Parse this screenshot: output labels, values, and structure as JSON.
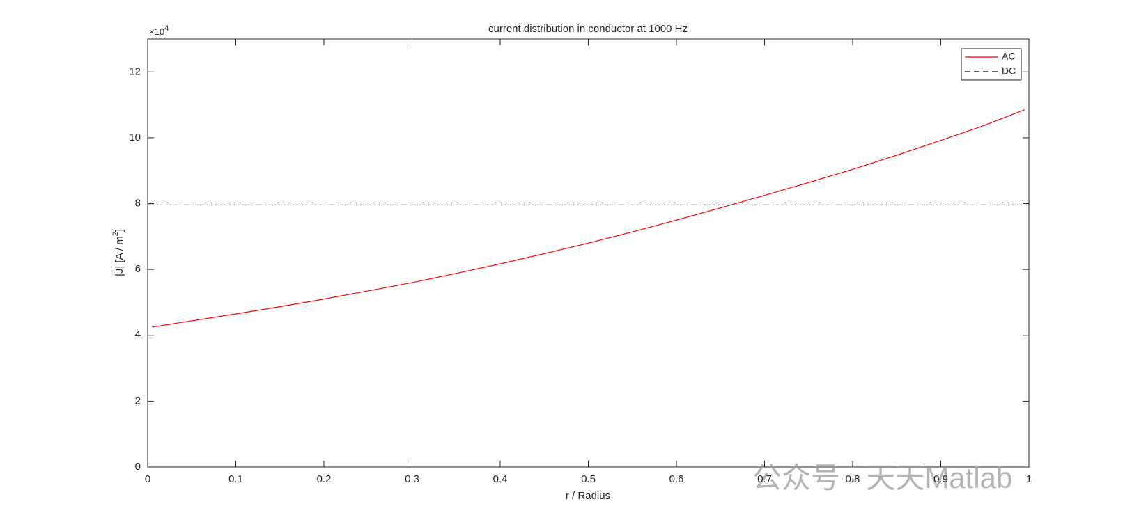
{
  "chart_data": {
    "type": "line",
    "title": "current distribution in conductor at 1000 Hz",
    "xlabel": "r / Radius",
    "ylabel": {
      "text": "|J|  [A / m",
      "sup": "2",
      "close": "]"
    },
    "y_exponent": {
      "base": "×10",
      "power": "4"
    },
    "xlim": [
      0,
      1
    ],
    "xticks": [
      0,
      0.1,
      0.2,
      0.3,
      0.4,
      0.5,
      0.6,
      0.7,
      0.8,
      0.9,
      1
    ],
    "ylim": [
      0,
      13
    ],
    "yticks": [
      0,
      2,
      4,
      6,
      8,
      10,
      12
    ],
    "legend": "northeast",
    "series": [
      {
        "name": "AC",
        "color": "#ff0000",
        "dash": false,
        "x": [
          0.005,
          0.05,
          0.1,
          0.15,
          0.2,
          0.25,
          0.3,
          0.35,
          0.4,
          0.45,
          0.5,
          0.55,
          0.6,
          0.65,
          0.7,
          0.75,
          0.8,
          0.85,
          0.9,
          0.95,
          0.995
        ],
        "values": [
          4.25,
          4.44,
          4.65,
          4.87,
          5.1,
          5.35,
          5.6,
          5.88,
          6.17,
          6.48,
          6.8,
          7.14,
          7.5,
          7.87,
          8.25,
          8.64,
          9.04,
          9.47,
          9.92,
          10.38,
          10.85
        ]
      },
      {
        "name": "DC",
        "color": "#000000",
        "dash": true,
        "x": [
          0,
          1
        ],
        "values": [
          7.96,
          7.96
        ]
      }
    ],
    "watermark": "公众号 · 天天Matlab"
  }
}
